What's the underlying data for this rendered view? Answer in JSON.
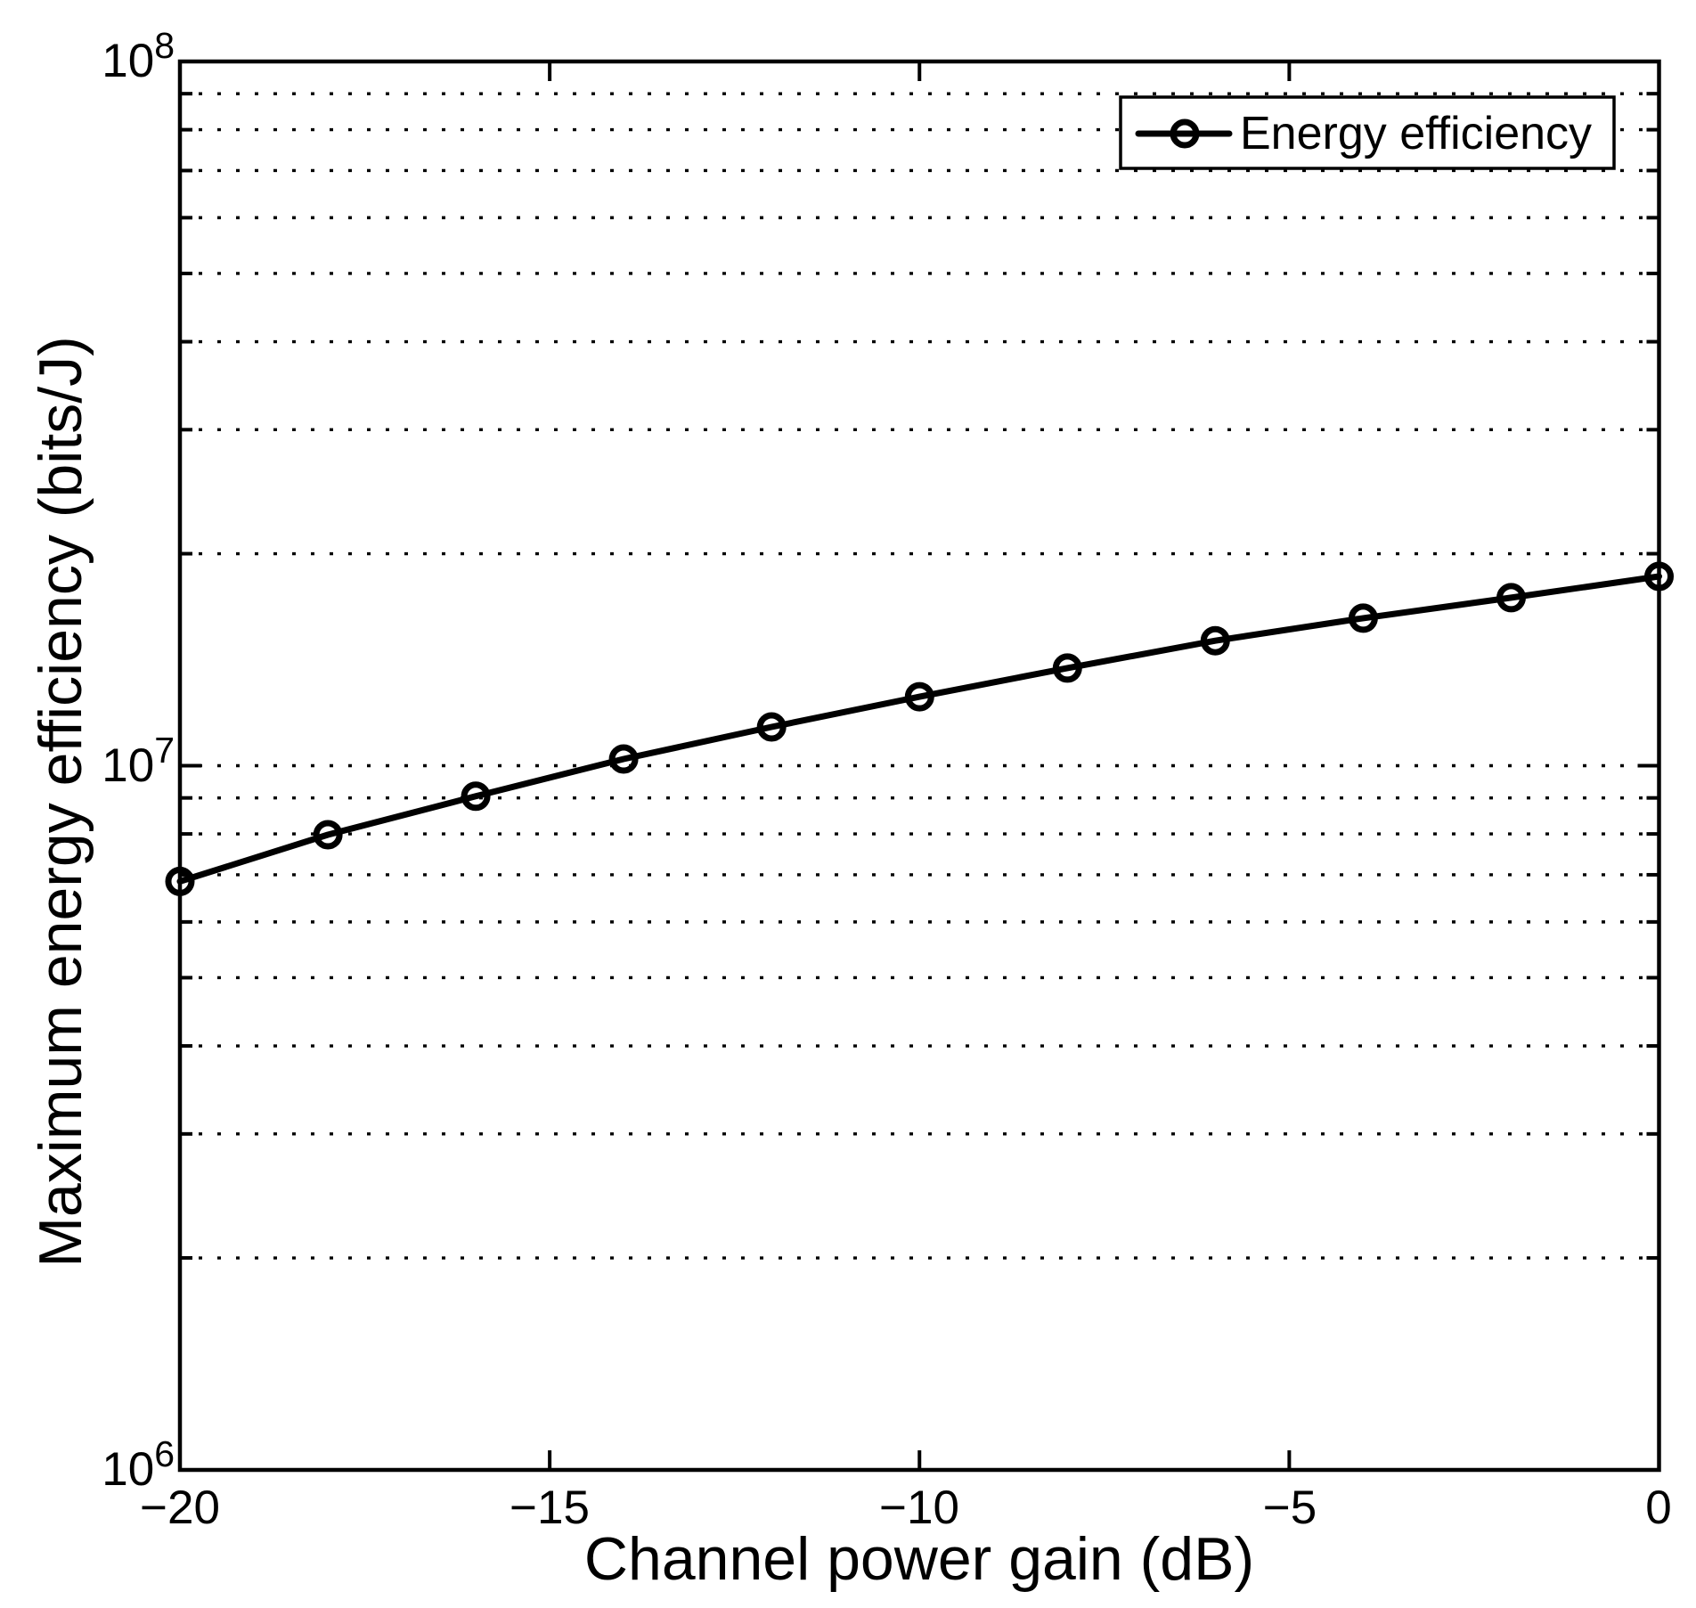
{
  "figure": {
    "background": "#ffffff",
    "foreground": "#000000"
  },
  "legend": {
    "position": "top-right",
    "items": [
      {
        "label": "Energy efficiency",
        "marker": "circle-icon",
        "line_color": "#000000"
      }
    ]
  },
  "chart_data": {
    "type": "line",
    "title": "",
    "xlabel": "Channel power gain (dB)",
    "ylabel": "Maximum energy efficiency (bits/J)",
    "x": [
      -20,
      -18,
      -16,
      -14,
      -12,
      -10,
      -8,
      -6,
      -4,
      -2,
      0
    ],
    "series": [
      {
        "name": "Energy efficiency",
        "color": "#000000",
        "marker": "o",
        "values": [
          6850000,
          7980000,
          9050000,
          10220000,
          11350000,
          12530000,
          13760000,
          15050000,
          16200000,
          17320000,
          18570000
        ]
      }
    ],
    "xlim": [
      -20,
      0
    ],
    "ylim": [
      1000000,
      100000000
    ],
    "xscale": "linear",
    "yscale": "log10",
    "x_ticks": [
      -20,
      -15,
      -10,
      -5,
      0
    ],
    "x_tick_labels": [
      "−20",
      "−15",
      "−10",
      "−5",
      "0"
    ],
    "y_ticks": [
      1000000,
      10000000,
      100000000
    ],
    "y_tick_labels": [
      {
        "base": "10",
        "exp": "6"
      },
      {
        "base": "10",
        "exp": "7"
      },
      {
        "base": "10",
        "exp": "8"
      }
    ],
    "grid": {
      "y_minor_dotted": true,
      "y_major_dotted": true,
      "x_gridlines": false
    },
    "legend_position": "top-right",
    "line_color": "#000000"
  }
}
